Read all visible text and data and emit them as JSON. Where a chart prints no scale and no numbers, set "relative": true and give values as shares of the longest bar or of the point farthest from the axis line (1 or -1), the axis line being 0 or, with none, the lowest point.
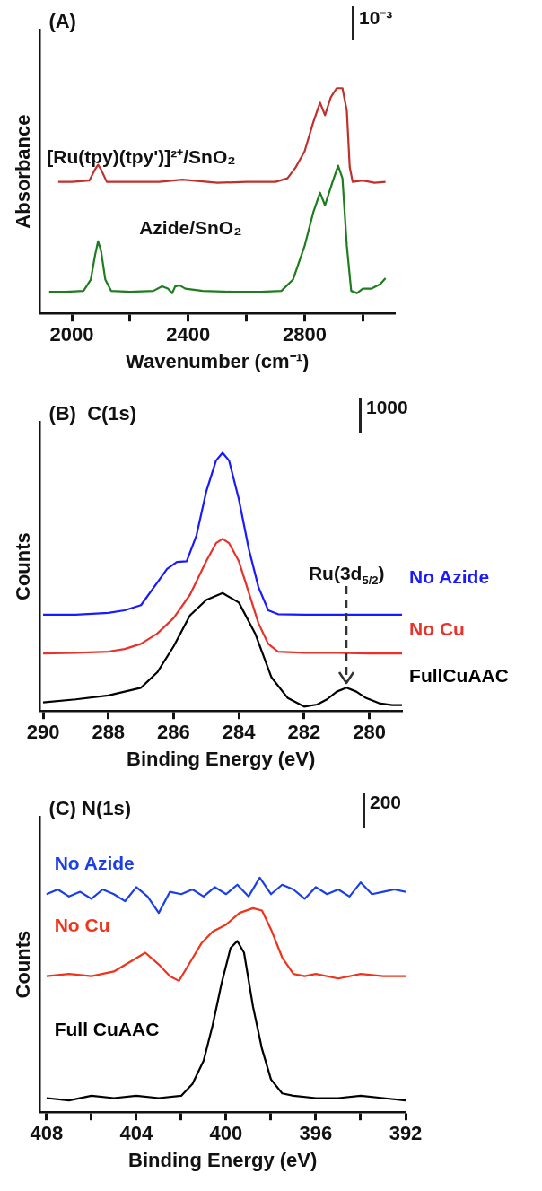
{
  "chart_data": [
    {
      "type": "line",
      "title": "(A)",
      "xlabel": "Wavenumber (cm⁻¹)",
      "ylabel": "Absorbance",
      "relative": true,
      "xlim": [
        1890,
        3110
      ],
      "xticks": [
        2000,
        {
          "value": 2200,
          "label": null
        },
        2400,
        {
          "value": 2600,
          "label": null
        },
        2800,
        {
          "value": 3000,
          "label": null
        }
      ],
      "annotations": [
        "10⁻³"
      ],
      "series": [
        {
          "name": "[Ru(tpy)(tpy')]²⁺/SnO₂",
          "color": "#c0302c",
          "x": [
            1953,
            2000,
            2060,
            2080,
            2090,
            2100,
            2120,
            2200,
            2300,
            2380,
            2500,
            2600,
            2700,
            2741,
            2770,
            2800,
            2830,
            2853,
            2870,
            2890,
            2910,
            2930,
            2945,
            2955,
            2965,
            3000,
            3040,
            3078
          ],
          "values": [
            0.584,
            0.584,
            0.59,
            0.64,
            0.66,
            0.64,
            0.584,
            0.584,
            0.584,
            0.594,
            0.58,
            0.584,
            0.584,
            0.6,
            0.65,
            0.72,
            0.85,
            0.936,
            0.88,
            0.96,
            1,
            1,
            0.9,
            0.65,
            0.584,
            0.59,
            0.58,
            0.584
          ]
        },
        {
          "name": "Azide/SnO₂",
          "color": "#1e7d1e",
          "x": [
            1922,
            1980,
            2040,
            2065,
            2080,
            2090,
            2100,
            2115,
            2135,
            2200,
            2280,
            2310,
            2330,
            2345,
            2355,
            2370,
            2390,
            2450,
            2550,
            2650,
            2720,
            2760,
            2800,
            2830,
            2853,
            2870,
            2895,
            2915,
            2930,
            2945,
            2960,
            2980,
            3000,
            3030,
            3060,
            3078
          ],
          "values": [
            0.096,
            0.096,
            0.1,
            0.15,
            0.26,
            0.32,
            0.28,
            0.15,
            0.1,
            0.096,
            0.1,
            0.12,
            0.11,
            0.09,
            0.12,
            0.125,
            0.11,
            0.1,
            0.096,
            0.096,
            0.1,
            0.15,
            0.3,
            0.45,
            0.536,
            0.48,
            0.58,
            0.656,
            0.6,
            0.3,
            0.1,
            0.09,
            0.11,
            0.11,
            0.13,
            0.156
          ]
        }
      ]
    },
    {
      "type": "line",
      "title": "(B)  C(1s)",
      "xlabel": "Binding Energy (eV)",
      "ylabel": "Counts",
      "relative": true,
      "xlim": [
        290.1,
        279
      ],
      "xticks": [
        290,
        288,
        286,
        284,
        282,
        280
      ],
      "annotations": [
        "1000",
        {
          "text": "Ru(3d$_{5/2}$)",
          "x": 280.7,
          "y": 0.09
        }
      ],
      "series": [
        {
          "name": "No Azide",
          "color": "#1a1aff",
          "x": [
            290,
            289,
            288,
            287.5,
            287,
            286.6,
            286.2,
            285.9,
            285.6,
            285.3,
            285,
            284.7,
            284.5,
            284.3,
            284,
            283.7,
            283.4,
            283.1,
            282.8,
            282,
            281,
            280,
            279
          ],
          "values": [
            0.373,
            0.373,
            0.38,
            0.39,
            0.41,
            0.48,
            0.55,
            0.577,
            0.58,
            0.68,
            0.85,
            0.97,
            1,
            0.97,
            0.82,
            0.63,
            0.48,
            0.39,
            0.375,
            0.373,
            0.373,
            0.373,
            0.373
          ]
        },
        {
          "name": "No Cu",
          "color": "#e8322a",
          "x": [
            290,
            289,
            288,
            287.5,
            287,
            286.5,
            286,
            285.5,
            285,
            284.7,
            284.5,
            284.3,
            284,
            283.7,
            283.4,
            283.1,
            282.8,
            282,
            281,
            280,
            279
          ],
          "values": [
            0.223,
            0.225,
            0.23,
            0.24,
            0.26,
            0.3,
            0.36,
            0.45,
            0.58,
            0.65,
            0.667,
            0.65,
            0.58,
            0.46,
            0.34,
            0.26,
            0.23,
            0.225,
            0.225,
            0.223,
            0.223
          ]
        },
        {
          "name": "FullCuAAC",
          "color": "#000000",
          "x": [
            290,
            289,
            288,
            287,
            286.5,
            286,
            285.5,
            285,
            284.5,
            284,
            283.5,
            283,
            282.5,
            282,
            281.6,
            281.3,
            281,
            280.7,
            280.4,
            280.1,
            279.7,
            279.3,
            279
          ],
          "values": [
            0.033,
            0.045,
            0.06,
            0.09,
            0.15,
            0.25,
            0.37,
            0.43,
            0.457,
            0.42,
            0.3,
            0.13,
            0.05,
            0.017,
            0.025,
            0.045,
            0.075,
            0.09,
            0.075,
            0.05,
            0.03,
            0.023,
            0.023
          ]
        }
      ]
    },
    {
      "type": "line",
      "title": "(C) N(1s)",
      "xlabel": "Binding Energy (eV)",
      "ylabel": "Counts",
      "relative": true,
      "xlim": [
        408.3,
        392
      ],
      "xticks": [
        408,
        {
          "value": 406,
          "label": null
        },
        404,
        {
          "value": 402,
          "label": null
        },
        400,
        {
          "value": 398,
          "label": null
        },
        396,
        {
          "value": 394,
          "label": null
        },
        392
      ],
      "annotations": [
        "200"
      ],
      "series": [
        {
          "name": "No Azide",
          "color": "#1a3fe6",
          "x": [
            408,
            407.5,
            407,
            406.5,
            406,
            405.5,
            405,
            404.5,
            404,
            403.5,
            403,
            402.5,
            402,
            401.5,
            401,
            400.5,
            400,
            399.5,
            399,
            398.5,
            398,
            397.5,
            397,
            396.5,
            396,
            395.5,
            395,
            394.5,
            394,
            393.5,
            393,
            392.5,
            392
          ],
          "values": [
            0.93,
            0.95,
            0.92,
            0.94,
            0.91,
            0.95,
            0.93,
            0.9,
            0.96,
            0.92,
            0.85,
            0.94,
            0.93,
            0.95,
            0.92,
            0.96,
            0.93,
            0.97,
            0.92,
            1,
            0.93,
            0.97,
            0.95,
            0.91,
            0.96,
            0.93,
            0.95,
            0.92,
            0.98,
            0.93,
            0.94,
            0.95,
            0.94
          ]
        },
        {
          "name": "No Cu",
          "color": "#f0341c",
          "x": [
            408,
            407,
            406,
            405,
            404.3,
            403.6,
            403,
            402.5,
            402.1,
            401.6,
            401.1,
            400.6,
            400,
            399.4,
            398.8,
            398.4,
            398,
            397.5,
            397,
            396.5,
            396,
            395,
            394,
            393,
            392
          ],
          "values": [
            0.58,
            0.59,
            0.58,
            0.6,
            0.64,
            0.68,
            0.63,
            0.58,
            0.56,
            0.64,
            0.72,
            0.77,
            0.8,
            0.85,
            0.87,
            0.86,
            0.78,
            0.66,
            0.59,
            0.58,
            0.59,
            0.57,
            0.59,
            0.58,
            0.58
          ]
        },
        {
          "name": "Full CuAAC",
          "color": "#000000",
          "x": [
            408,
            407,
            406,
            405,
            404,
            403,
            402,
            401.5,
            401,
            400.6,
            400.2,
            399.8,
            399.5,
            399.2,
            398.8,
            398.4,
            398,
            397.5,
            397,
            396,
            395,
            394,
            393,
            392
          ],
          "values": [
            0.06,
            0.05,
            0.07,
            0.06,
            0.07,
            0.06,
            0.07,
            0.12,
            0.22,
            0.37,
            0.55,
            0.7,
            0.73,
            0.68,
            0.45,
            0.27,
            0.14,
            0.08,
            0.07,
            0.06,
            0.06,
            0.07,
            0.06,
            0.05
          ]
        }
      ]
    }
  ]
}
